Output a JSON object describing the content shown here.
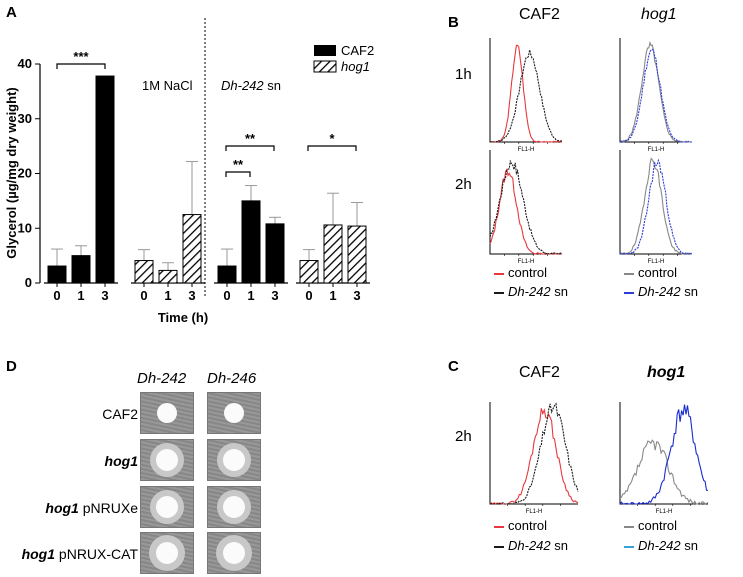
{
  "panel_a": {
    "letter": "A",
    "chart_data": {
      "type": "bar",
      "ylabel": "Glycerol (µg/mg dry weight)",
      "xlabel": "Time (h)",
      "ylim": [
        0,
        40
      ],
      "yticks": [
        "0",
        "10",
        "20",
        "30",
        "40"
      ],
      "time_labels": [
        "0",
        "1",
        "3"
      ],
      "legend": [
        "CAF2",
        "hog1"
      ],
      "conditions": [
        {
          "label": "1M NaCl",
          "label_italic": "",
          "groups": [
            {
              "strain": "CAF2",
              "values": [
                3.1,
                5.0,
                37.8
              ],
              "errors": [
                3.1,
                1.8,
                0.0
              ]
            },
            {
              "strain": "hog1",
              "values": [
                4.1,
                2.3,
                12.5
              ],
              "errors": [
                2.0,
                1.4,
                9.7
              ]
            }
          ]
        },
        {
          "label": " sn",
          "label_italic": "Dh-242",
          "groups": [
            {
              "strain": "CAF2",
              "values": [
                3.1,
                15.0,
                10.8
              ],
              "errors": [
                3.1,
                2.8,
                1.2
              ]
            },
            {
              "strain": "hog1",
              "values": [
                4.1,
                10.6,
                10.4
              ],
              "errors": [
                2.0,
                5.8,
                4.3
              ]
            }
          ]
        }
      ],
      "significance": [
        "***",
        "**",
        "**",
        "*"
      ]
    }
  },
  "panel_b": {
    "letter": "B",
    "strain_labels": [
      "CAF2",
      "hog1"
    ],
    "time_labels": [
      "1h",
      "2h"
    ],
    "axis_label": "FL1-H",
    "legend_left": [
      {
        "text": "control",
        "italic": "",
        "color": "#e8383d"
      },
      {
        "text": " sn",
        "italic": "Dh-242",
        "color": "#1a1a1a"
      }
    ],
    "legend_right": [
      {
        "text": "control",
        "italic": "",
        "color": "#888888"
      },
      {
        "text": " sn",
        "italic": "Dh-242",
        "color": "#2a3bd6"
      }
    ]
  },
  "panel_c": {
    "letter": "C",
    "strain_labels": [
      "CAF2",
      "hog1"
    ],
    "time_label": "2h",
    "axis_label": "FL1-H",
    "legend_left": [
      {
        "text": "control",
        "italic": "",
        "color": "#e8383d"
      },
      {
        "text": " sn",
        "italic": "Dh-242",
        "color": "#1a1a1a"
      }
    ],
    "legend_right": [
      {
        "text": "control",
        "italic": "",
        "color": "#888888"
      },
      {
        "text": " sn",
        "italic": "Dh-242",
        "color": "#3aa3d6"
      }
    ]
  },
  "panel_d": {
    "letter": "D",
    "columns": [
      "Dh-242",
      "Dh-246"
    ],
    "rows": [
      {
        "italic": "",
        "text": "CAF2"
      },
      {
        "italic": "hog1",
        "text": ""
      },
      {
        "italic": "hog1",
        "text": " pNRUXe"
      },
      {
        "italic": "hog1",
        "text": " pNRUX-CAT"
      }
    ]
  }
}
